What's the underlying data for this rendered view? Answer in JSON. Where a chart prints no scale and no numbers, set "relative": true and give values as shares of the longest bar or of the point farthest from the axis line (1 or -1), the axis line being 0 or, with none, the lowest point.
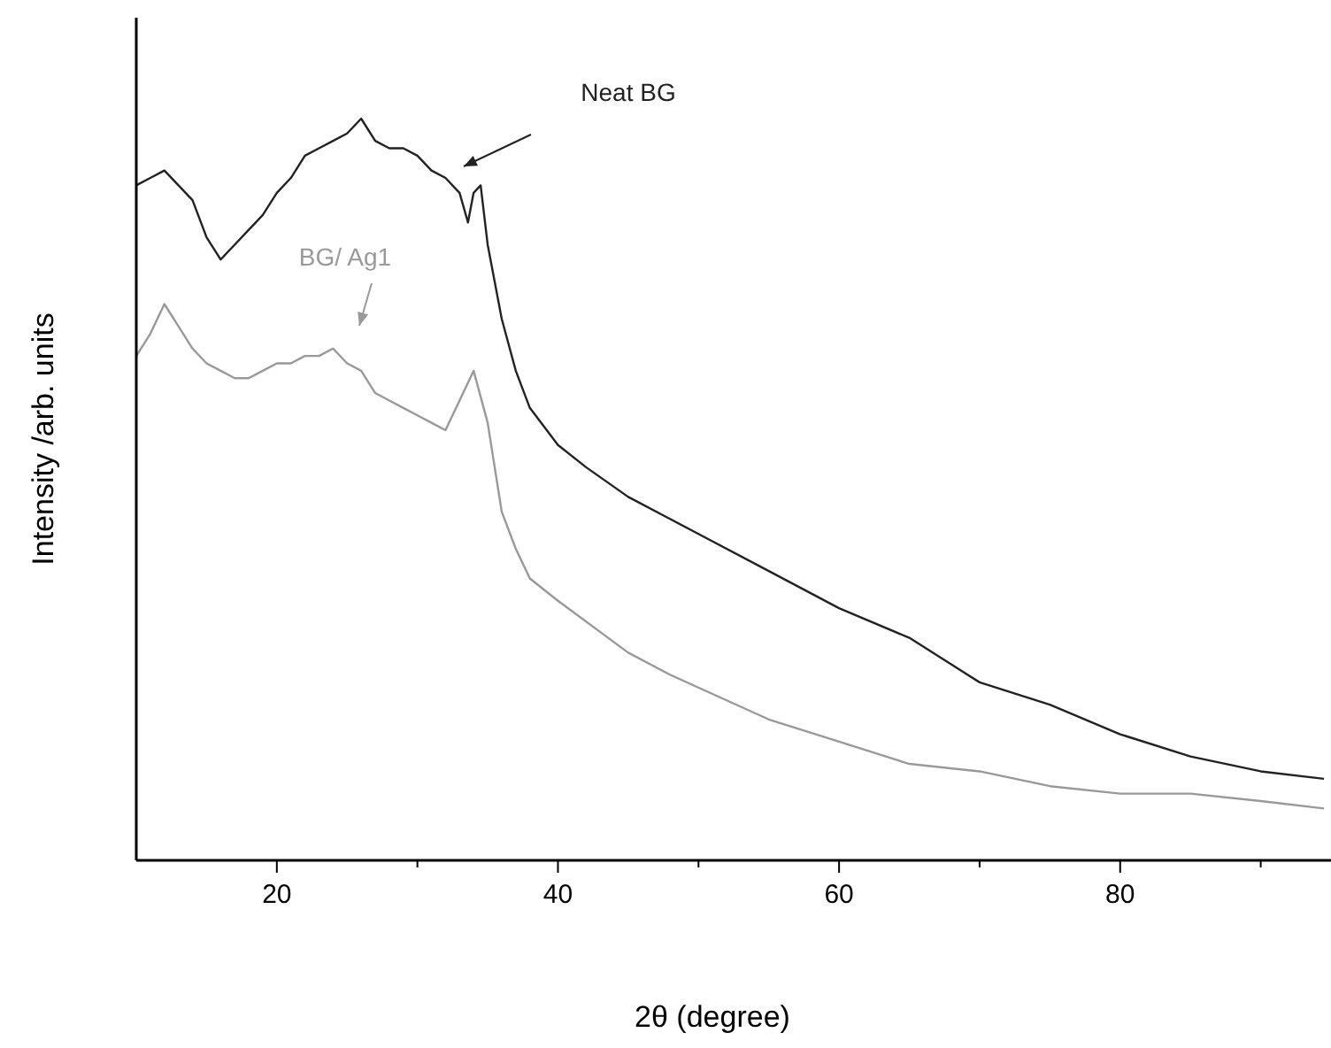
{
  "chart_data": {
    "type": "line",
    "xlabel": "2θ (degree)",
    "ylabel": "Intensity /arb. units",
    "relative": true,
    "xlim": [
      10,
      95
    ],
    "xticks": [
      20,
      {
        "value": 30,
        "label": null
      },
      40,
      {
        "value": 50,
        "label": null
      },
      60,
      {
        "value": 70,
        "label": null
      },
      80,
      {
        "value": 90,
        "label": null
      }
    ],
    "legend": false,
    "grid": false,
    "marker": "none",
    "line_style": "solid",
    "series": [
      {
        "name": "Neat BG",
        "color": "#222222",
        "x": [
          10,
          11,
          12,
          13,
          14,
          15,
          16,
          17,
          18,
          19,
          20,
          21,
          22,
          23,
          24,
          25,
          26,
          27,
          28,
          29,
          30,
          31,
          32,
          33,
          33.6,
          34,
          34.5,
          35,
          36,
          37,
          38,
          40,
          42,
          45,
          48,
          50,
          55,
          60,
          65,
          70,
          75,
          80,
          85,
          90,
          94.5
        ],
        "values": [
          0.91,
          0.92,
          0.93,
          0.91,
          0.89,
          0.84,
          0.81,
          0.83,
          0.85,
          0.87,
          0.9,
          0.92,
          0.95,
          0.96,
          0.97,
          0.98,
          1,
          0.97,
          0.96,
          0.96,
          0.95,
          0.93,
          0.92,
          0.9,
          0.86,
          0.9,
          0.91,
          0.83,
          0.73,
          0.66,
          0.61,
          0.56,
          0.53,
          0.49,
          0.46,
          0.44,
          0.39,
          0.34,
          0.3,
          0.24,
          0.21,
          0.17,
          0.14,
          0.12,
          0.11
        ]
      },
      {
        "name": "BG/ Ag1",
        "color": "#999999",
        "x": [
          10,
          11,
          12,
          13,
          14,
          15,
          16,
          17,
          18,
          19,
          20,
          21,
          22,
          23,
          24,
          25,
          26,
          27,
          28,
          29,
          30,
          31,
          32,
          33,
          34,
          35,
          36,
          37,
          38,
          40,
          45,
          48,
          55,
          60,
          65,
          70,
          75,
          80,
          85,
          90,
          94.5
        ],
        "values": [
          0.68,
          0.71,
          0.75,
          0.72,
          0.69,
          0.67,
          0.66,
          0.65,
          0.65,
          0.66,
          0.67,
          0.67,
          0.68,
          0.68,
          0.69,
          0.67,
          0.66,
          0.63,
          0.62,
          0.61,
          0.6,
          0.59,
          0.58,
          0.62,
          0.66,
          0.59,
          0.47,
          0.42,
          0.38,
          0.35,
          0.28,
          0.25,
          0.19,
          0.16,
          0.13,
          0.12,
          0.1,
          0.09,
          0.09,
          0.08,
          0.07
        ]
      }
    ]
  }
}
